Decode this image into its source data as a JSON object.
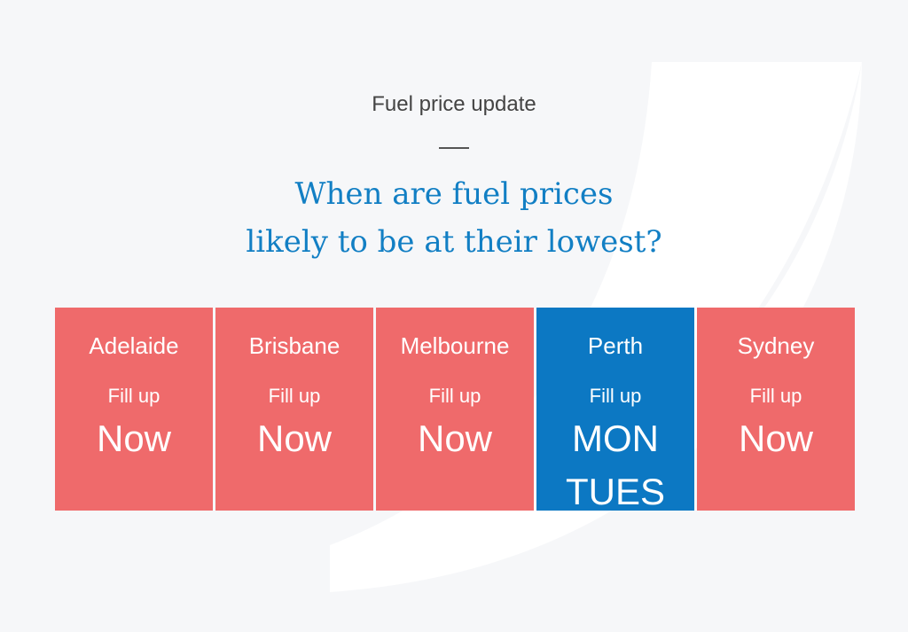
{
  "header": {
    "eyebrow": "Fuel price update",
    "headline_line1": "When are fuel prices",
    "headline_line2": "likely to be at their lowest?"
  },
  "colors": {
    "background": "#f6f7f9",
    "headline": "#127fc4",
    "tile_default": "#ef6a6b",
    "tile_highlight": "#0c78c3"
  },
  "tiles": [
    {
      "city": "Adelaide",
      "label": "Fill up",
      "when_line1": "Now",
      "when_line2": ""
    },
    {
      "city": "Brisbane",
      "label": "Fill up",
      "when_line1": "Now",
      "when_line2": ""
    },
    {
      "city": "Melbourne",
      "label": "Fill up",
      "when_line1": "Now",
      "when_line2": ""
    },
    {
      "city": "Perth",
      "label": "Fill up",
      "when_line1": "MON",
      "when_line2": "TUES"
    },
    {
      "city": "Sydney",
      "label": "Fill up",
      "when_line1": "Now",
      "when_line2": ""
    }
  ]
}
